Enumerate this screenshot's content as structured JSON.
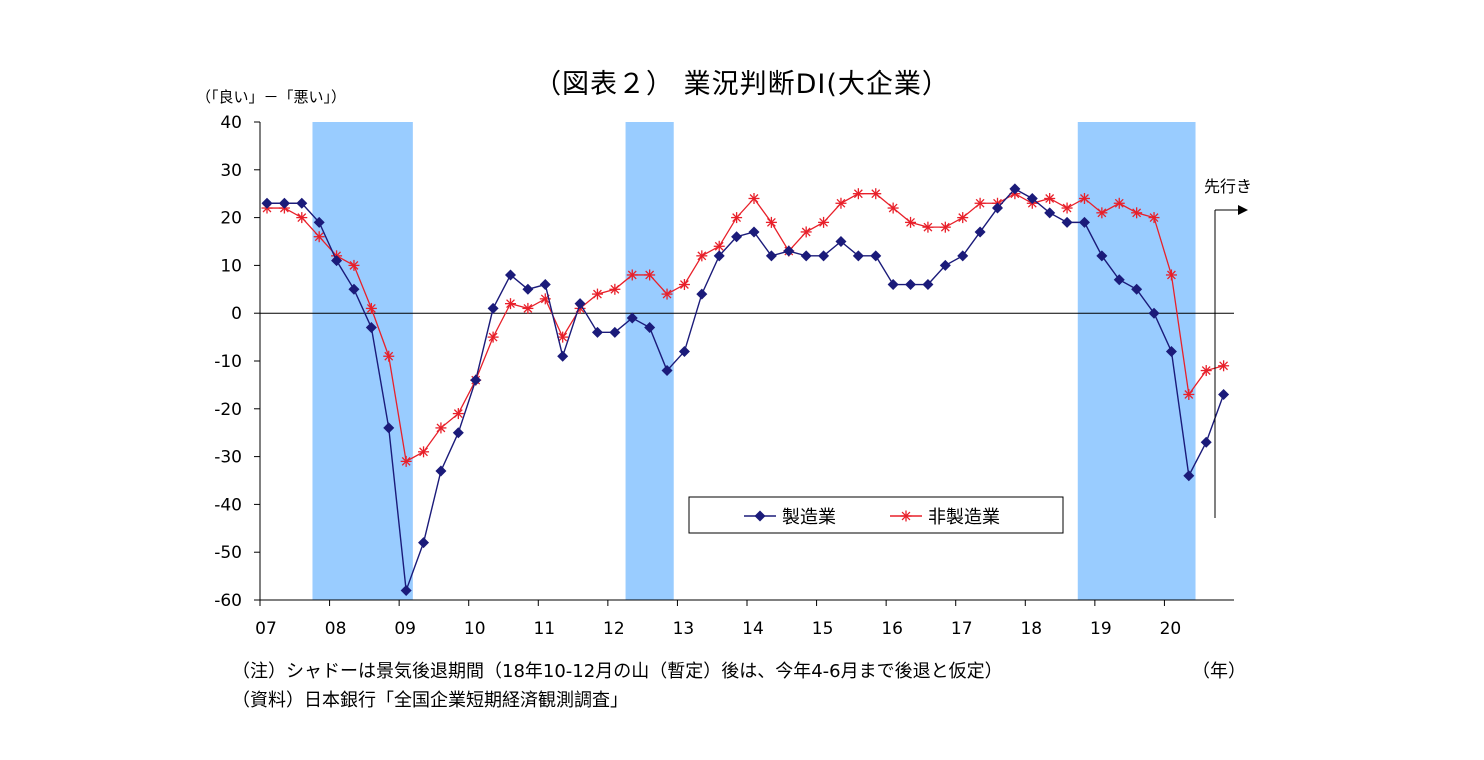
{
  "title": "（図表２） 業況判断DI(大企業）",
  "y_unit": "（「良い」－「悪い」）",
  "x_unit": "（年）",
  "forecast_label": "先行き",
  "notes": {
    "note": "（注）シャドーは景気後退期間（18年10-12月の山（暫定）後は、今年4-6月まで後退と仮定）",
    "source": "（資料）日本銀行「全国企業短期経済観測調査」"
  },
  "colors": {
    "manufacturing": "#1b1b7a",
    "non_manufacturing": "#e8202a",
    "shade": "#99ccff"
  },
  "chart_data": {
    "type": "line",
    "title": "（図表２） 業況判断DI(大企業）",
    "xlabel": "（年）",
    "ylabel": "（「良い」－「悪い」）",
    "ylim": [
      -60,
      40
    ],
    "yticks": [
      40,
      30,
      20,
      10,
      0,
      -10,
      -20,
      -30,
      -40,
      -50,
      -60
    ],
    "xtick_labels": [
      "07",
      "08",
      "09",
      "10",
      "11",
      "12",
      "13",
      "14",
      "15",
      "16",
      "17",
      "18",
      "19",
      "20"
    ],
    "x_period": "quarterly, 2007Q1 – 2020Q4",
    "grid": false,
    "legend_position": "lower-right inside plot",
    "shaded_recessions": [
      {
        "start": "2007Q4",
        "end": "2009Q1"
      },
      {
        "start": "2012Q2",
        "end": "2012Q4"
      },
      {
        "start": "2018Q4",
        "end": "2020Q2"
      }
    ],
    "series": [
      {
        "name": "製造業",
        "marker": "diamond",
        "values": [
          23,
          23,
          23,
          19,
          11,
          5,
          -3,
          -24,
          -58,
          -48,
          -33,
          -25,
          -14,
          1,
          8,
          5,
          6,
          -9,
          2,
          -4,
          -4,
          -1,
          -3,
          -12,
          -8,
          4,
          12,
          16,
          17,
          12,
          13,
          12,
          12,
          15,
          12,
          12,
          6,
          6,
          6,
          10,
          12,
          17,
          22,
          26,
          24,
          21,
          19,
          19,
          12,
          7,
          5,
          0,
          -8,
          -34,
          -27,
          -17
        ]
      },
      {
        "name": "非製造業",
        "marker": "asterisk",
        "values": [
          22,
          22,
          20,
          16,
          12,
          10,
          1,
          -9,
          -31,
          -29,
          -24,
          -21,
          -14,
          -5,
          2,
          1,
          3,
          -5,
          1,
          4,
          5,
          8,
          8,
          4,
          6,
          12,
          14,
          20,
          24,
          19,
          13,
          17,
          19,
          23,
          25,
          25,
          22,
          19,
          18,
          18,
          20,
          23,
          23,
          25,
          23,
          24,
          22,
          24,
          21,
          23,
          21,
          20,
          8,
          -17,
          -12,
          -11
        ]
      }
    ]
  }
}
